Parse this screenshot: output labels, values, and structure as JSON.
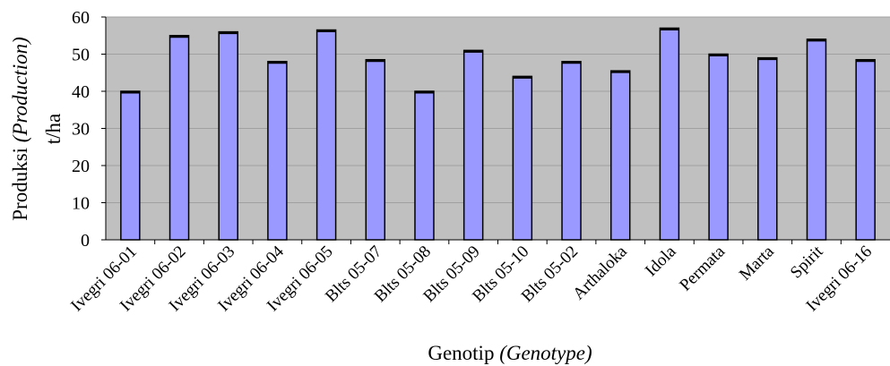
{
  "chart_data": {
    "type": "bar",
    "title": "",
    "categories": [
      "Ivegri 06-01",
      "Ivegri 06-02",
      "Ivegri 06-03",
      "Ivegri 06-04",
      "Ivegri 06-05",
      "Blts 05-07",
      "Blts 05-08",
      "Blts 05-09",
      "Blts 05-10",
      "Blts 05-02",
      "Arthaloka",
      "Idola",
      "Permata",
      "Marta",
      "Spirit",
      "Ivegri 06-16"
    ],
    "values": [
      40,
      55,
      56,
      48,
      56.5,
      48.5,
      40,
      51,
      44,
      48,
      45.5,
      57,
      50,
      49,
      54,
      48.5
    ],
    "xlabel": {
      "main": "Genotip",
      "italic": "(Genotype)"
    },
    "ylabel": {
      "main": "Produksi",
      "italic": "(Production)",
      "unit": "t/ha"
    },
    "yticks": [
      "0",
      "10",
      "20",
      "30",
      "40",
      "50",
      "60"
    ],
    "ylim": [
      0,
      60
    ],
    "grid": true,
    "legend": "none",
    "colors": {
      "bar": "#9999ff",
      "plot_bg": "#c0c0c0",
      "gridline": "#a0a0a0",
      "bar_edge": "#000000"
    }
  }
}
